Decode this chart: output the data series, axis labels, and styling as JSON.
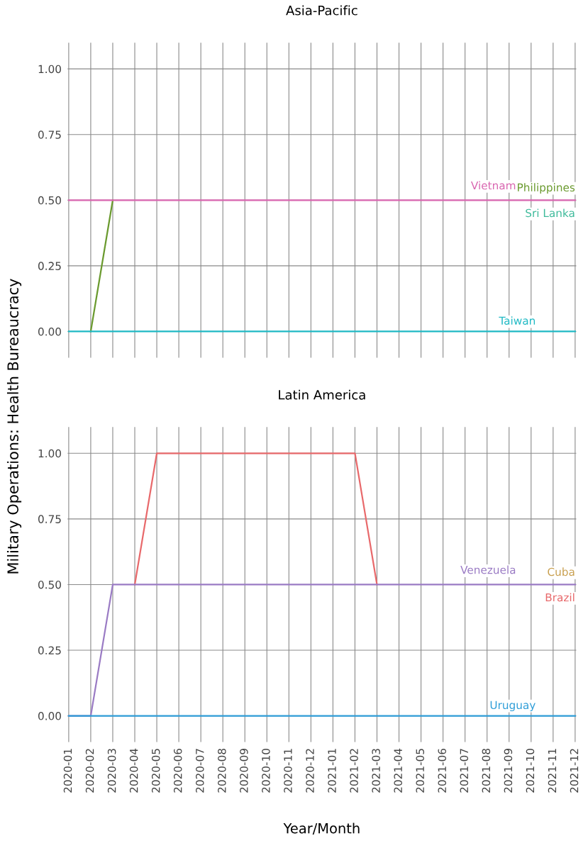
{
  "chart_data": [
    {
      "type": "line",
      "title": "Asia-Pacific",
      "ylabel": "Military Operations: Health Bureaucracy",
      "categories": [
        "2020-01",
        "2020-02",
        "2020-03",
        "2020-04",
        "2020-05",
        "2020-06",
        "2020-07",
        "2020-08",
        "2020-09",
        "2020-10",
        "2020-11",
        "2020-12",
        "2021-01",
        "2021-02",
        "2021-03",
        "2021-04",
        "2021-05",
        "2021-06",
        "2021-07",
        "2021-08",
        "2021-09",
        "2021-10",
        "2021-11",
        "2021-12"
      ],
      "ylim": [
        -0.1,
        1.1
      ],
      "yticks": [
        {
          "value": 0,
          "label": "0.00"
        },
        {
          "value": 0.25,
          "label": "0.25"
        },
        {
          "value": 0.5,
          "label": "0.50"
        },
        {
          "value": 0.75,
          "label": "0.75"
        },
        {
          "value": 1,
          "label": "1.00"
        }
      ],
      "grid": true,
      "tick_labels": "y",
      "line_style": "solid",
      "series": [
        {
          "name": "Philippines",
          "color": "#6a9a2e",
          "values": [
            null,
            0,
            0.5,
            null,
            null,
            null,
            null,
            null,
            null,
            null,
            null,
            null,
            null,
            null,
            null,
            null,
            null,
            null,
            null,
            null,
            null,
            null,
            null,
            null
          ]
        },
        {
          "name": "Sri Lanka",
          "color": "#3dba9a",
          "values": [
            null,
            null,
            null,
            null,
            null,
            null,
            null,
            null,
            null,
            null,
            null,
            null,
            null,
            null,
            null,
            null,
            null,
            null,
            null,
            null,
            null,
            null,
            null,
            null
          ]
        },
        {
          "name": "Vietnam",
          "color": "#d966b0",
          "values": [
            0.5,
            0.5,
            0.5,
            0.5,
            0.5,
            0.5,
            0.5,
            0.5,
            0.5,
            0.5,
            0.5,
            0.5,
            0.5,
            0.5,
            0.5,
            0.5,
            0.5,
            0.5,
            0.5,
            0.5,
            0.5,
            0.5,
            0.5,
            0.5
          ]
        },
        {
          "name": "Taiwan",
          "color": "#1fb9c4",
          "values": [
            0,
            0,
            0,
            0,
            0,
            0,
            0,
            0,
            0,
            0,
            0,
            0,
            0,
            0,
            0,
            0,
            0,
            0,
            0,
            0,
            0,
            0,
            0,
            0
          ]
        }
      ]
    },
    {
      "type": "line",
      "title": "Latin America",
      "xlabel": "Year/Month",
      "categories": [
        "2020-01",
        "2020-02",
        "2020-03",
        "2020-04",
        "2020-05",
        "2020-06",
        "2020-07",
        "2020-08",
        "2020-09",
        "2020-10",
        "2020-11",
        "2020-12",
        "2021-01",
        "2021-02",
        "2021-03",
        "2021-04",
        "2021-05",
        "2021-06",
        "2021-07",
        "2021-08",
        "2021-09",
        "2021-10",
        "2021-11",
        "2021-12"
      ],
      "ylim": [
        -0.1,
        1.1
      ],
      "yticks": [
        {
          "value": 0,
          "label": "0.00"
        },
        {
          "value": 0.25,
          "label": "0.25"
        },
        {
          "value": 0.5,
          "label": "0.50"
        },
        {
          "value": 0.75,
          "label": "0.75"
        },
        {
          "value": 1,
          "label": "1.00"
        }
      ],
      "grid": true,
      "line_style": "solid",
      "series": [
        {
          "name": "Cuba",
          "color": "#c9a050",
          "values": [
            null,
            null,
            null,
            null,
            null,
            null,
            null,
            null,
            null,
            null,
            null,
            null,
            null,
            null,
            null,
            null,
            null,
            null,
            null,
            null,
            null,
            null,
            null,
            null
          ]
        },
        {
          "name": "Brazil",
          "color": "#e8696b",
          "values": [
            null,
            null,
            null,
            0.5,
            1,
            1,
            1,
            1,
            1,
            1,
            1,
            1,
            1,
            1,
            0.5,
            null,
            null,
            null,
            null,
            null,
            null,
            null,
            null,
            null
          ]
        },
        {
          "name": "Venezuela",
          "color": "#9a7bc4",
          "values": [
            0,
            0,
            0.5,
            0.5,
            0.5,
            0.5,
            0.5,
            0.5,
            0.5,
            0.5,
            0.5,
            0.5,
            0.5,
            0.5,
            0.5,
            0.5,
            0.5,
            0.5,
            0.5,
            0.5,
            0.5,
            0.5,
            0.5,
            0.5
          ]
        },
        {
          "name": "Uruguay",
          "color": "#2f9ed8",
          "values": [
            0,
            0,
            0,
            0,
            0,
            0,
            0,
            0,
            0,
            0,
            0,
            0,
            0,
            0,
            0,
            0,
            0,
            0,
            0,
            0,
            0,
            0,
            0,
            0
          ]
        }
      ]
    }
  ]
}
